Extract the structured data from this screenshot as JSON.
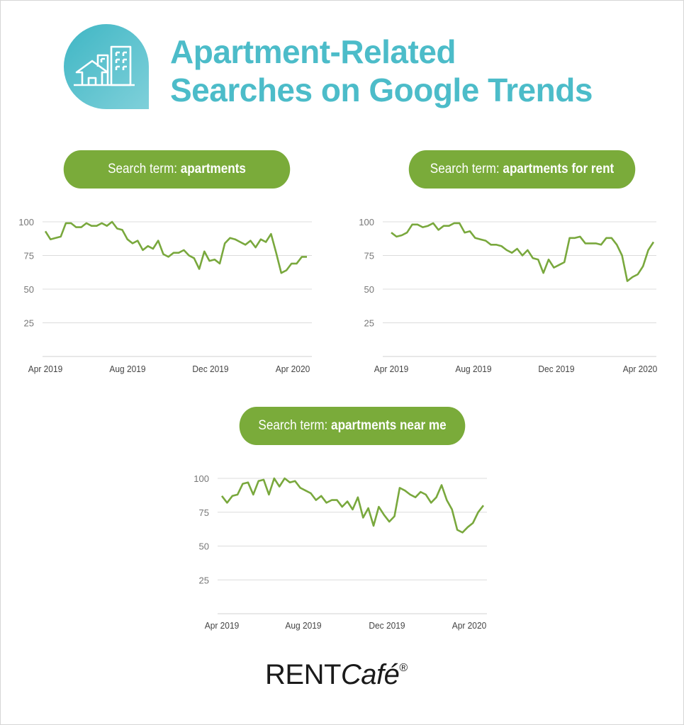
{
  "header": {
    "title_line1": "Apartment-Related",
    "title_line2": "Searches on Google Trends",
    "icon": "apartment-building-house-icon",
    "accent_color": "#4cbcc9"
  },
  "brand": {
    "name_part1": "RENT",
    "name_part2": "Café",
    "mark": "®"
  },
  "pill_color": "#7aab3a",
  "line_color": "#79a83d",
  "chart_data": [
    {
      "type": "line",
      "label_prefix": "Search term: ",
      "search_term": "apartments",
      "yticks": [
        100,
        75,
        50,
        25
      ],
      "ylim": [
        0,
        100
      ],
      "xticks": [
        "Apr 2019",
        "Aug 2019",
        "Dec 2019",
        "Apr 2020"
      ],
      "grid": true,
      "values": [
        93,
        87,
        88,
        89,
        99,
        99,
        96,
        96,
        99,
        97,
        97,
        99,
        97,
        100,
        95,
        94,
        87,
        84,
        86,
        79,
        82,
        80,
        86,
        76,
        74,
        77,
        77,
        79,
        75,
        73,
        65,
        78,
        71,
        72,
        69,
        84,
        88,
        87,
        85,
        83,
        86,
        81,
        87,
        85,
        91,
        77,
        62,
        64,
        69,
        69,
        74,
        74
      ]
    },
    {
      "type": "line",
      "label_prefix": "Search term: ",
      "search_term": "apartments for rent",
      "yticks": [
        100,
        75,
        50,
        25
      ],
      "ylim": [
        0,
        100
      ],
      "xticks": [
        "Apr 2019",
        "Aug 2019",
        "Dec 2019",
        "Apr 2020"
      ],
      "grid": true,
      "values": [
        92,
        89,
        90,
        92,
        98,
        98,
        96,
        97,
        99,
        94,
        97,
        97,
        99,
        99,
        92,
        93,
        88,
        87,
        86,
        83,
        83,
        82,
        79,
        77,
        80,
        75,
        79,
        73,
        72,
        62,
        72,
        66,
        68,
        70,
        88,
        88,
        89,
        84,
        84,
        84,
        83,
        88,
        88,
        83,
        75,
        56,
        59,
        61,
        67,
        79,
        85
      ]
    },
    {
      "type": "line",
      "label_prefix": "Search term: ",
      "search_term": "apartments near me",
      "yticks": [
        100,
        75,
        50,
        25
      ],
      "ylim": [
        0,
        100
      ],
      "xticks": [
        "Apr 2019",
        "Aug 2019",
        "Dec 2019",
        "Apr 2020"
      ],
      "grid": true,
      "values": [
        87,
        82,
        87,
        88,
        96,
        97,
        88,
        98,
        99,
        88,
        100,
        94,
        100,
        97,
        98,
        93,
        91,
        89,
        84,
        87,
        82,
        84,
        84,
        79,
        83,
        77,
        86,
        71,
        78,
        65,
        79,
        73,
        68,
        72,
        93,
        91,
        88,
        86,
        90,
        88,
        82,
        86,
        95,
        84,
        77,
        62,
        60,
        64,
        67,
        75,
        80
      ]
    }
  ]
}
